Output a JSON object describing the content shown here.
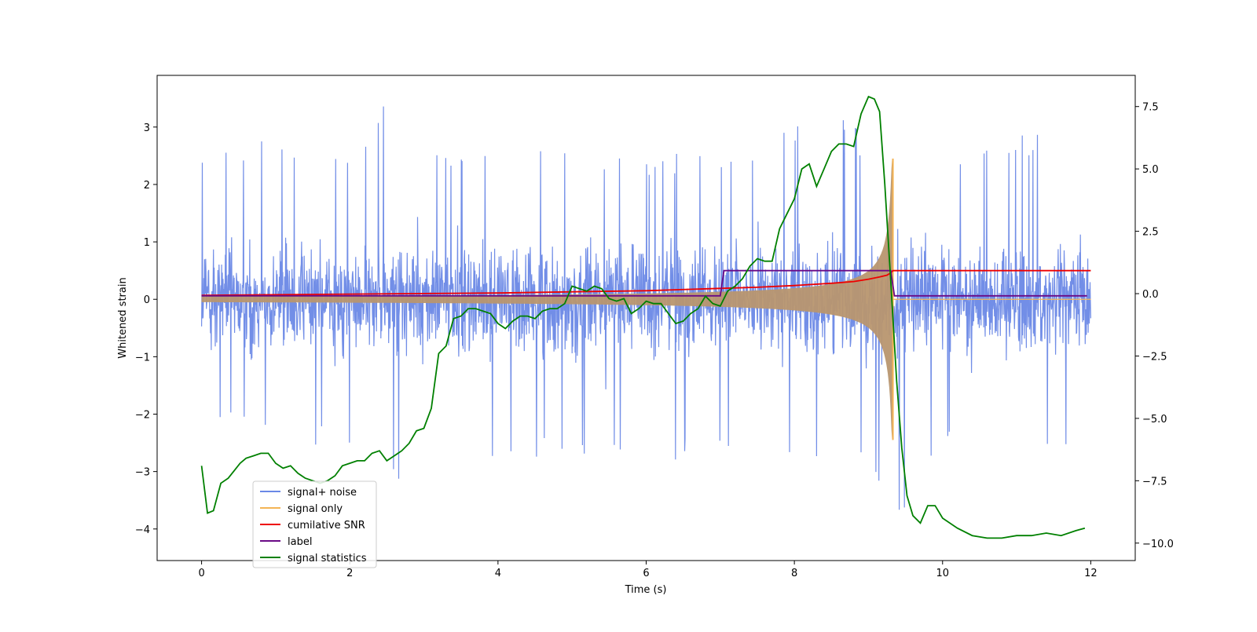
{
  "chart_data": {
    "type": "line",
    "xlabel": "Time (s)",
    "ylabel": "Whitened strain",
    "xlim": [
      -0.6,
      12.6
    ],
    "ylim": [
      -4.55,
      3.9
    ],
    "y2lim": [
      -10.7,
      8.75
    ],
    "xticks": [
      0,
      2,
      4,
      6,
      8,
      10,
      12
    ],
    "xtick_labels": [
      "0",
      "2",
      "4",
      "6",
      "8",
      "10",
      "12"
    ],
    "yticks": [
      -4,
      -3,
      -2,
      -1,
      0,
      1,
      2,
      3
    ],
    "ytick_labels": [
      "−4",
      "−3",
      "−2",
      "−1",
      "0",
      "1",
      "2",
      "3"
    ],
    "y2ticks": [
      -10,
      -7.5,
      -5,
      -2.5,
      0,
      2.5,
      5,
      7.5
    ],
    "y2tick_labels": [
      "−10.0",
      "−7.5",
      "−5.0",
      "−2.5",
      "0.0",
      "2.5",
      "5.0",
      "7.5"
    ],
    "legend_position": "lower-left",
    "colors": {
      "noise": "#6a88e6",
      "signal": "#f4b455",
      "overlap": "#b8966f",
      "snr": "#ee0000",
      "label": "#6a0a86",
      "stat": "#008000"
    },
    "series": [
      {
        "key": "noise",
        "name": "signal+ noise",
        "axis": "left",
        "note_only": "dense noisy trace roughly within [-2.5, 2.5] with spikes",
        "envelope_upper": [
          [
            0,
            2.5
          ],
          [
            0.5,
            2.7
          ],
          [
            1,
            2.8
          ],
          [
            2,
            2.7
          ],
          [
            2.45,
            3.5
          ],
          [
            3,
            2.7
          ],
          [
            4,
            2.6
          ],
          [
            5,
            2.6
          ],
          [
            6,
            2.5
          ],
          [
            7,
            2.6
          ],
          [
            8,
            3.1
          ],
          [
            8.6,
            3.3
          ],
          [
            9.3,
            2.4
          ],
          [
            10,
            2.6
          ],
          [
            11,
            2.9
          ],
          [
            12,
            2.9
          ]
        ],
        "envelope_lower": [
          [
            0,
            -2.0
          ],
          [
            1,
            -2.5
          ],
          [
            2,
            -2.6
          ],
          [
            3,
            -3.5
          ],
          [
            3.35,
            -3.8
          ],
          [
            4,
            -2.9
          ],
          [
            5,
            -2.8
          ],
          [
            6,
            -2.9
          ],
          [
            7,
            -2.7
          ],
          [
            8,
            -2.9
          ],
          [
            9.0,
            -3.1
          ],
          [
            9.35,
            -4.15
          ],
          [
            10,
            -2.6
          ],
          [
            11,
            -2.9
          ],
          [
            12,
            -2.4
          ]
        ]
      },
      {
        "key": "signal",
        "name": "signal only",
        "axis": "left",
        "chirp_end_time": 9.33,
        "chirp_peak": 2.45
      },
      {
        "key": "snr",
        "name": "cumilative SNR",
        "axis": "left",
        "x": [
          0,
          1,
          2,
          3,
          4,
          5,
          6,
          7,
          7.5,
          8,
          8.5,
          8.8,
          9.0,
          9.15,
          9.25,
          9.3,
          9.33,
          12
        ],
        "y": [
          0.07,
          0.08,
          0.09,
          0.1,
          0.11,
          0.13,
          0.15,
          0.19,
          0.21,
          0.24,
          0.28,
          0.31,
          0.35,
          0.39,
          0.42,
          0.46,
          0.5,
          0.5
        ]
      },
      {
        "key": "label",
        "name": "label",
        "axis": "left",
        "x": [
          0,
          7.0,
          7.05,
          9.3,
          9.35,
          11.95
        ],
        "y": [
          0.06,
          0.06,
          0.5,
          0.5,
          0.06,
          0.06
        ]
      },
      {
        "key": "stat",
        "name": "signal statistics",
        "axis": "right",
        "x": [
          0,
          0.08,
          0.16,
          0.26,
          0.36,
          0.44,
          0.52,
          0.6,
          0.7,
          0.8,
          0.9,
          1.0,
          1.1,
          1.2,
          1.3,
          1.4,
          1.5,
          1.6,
          1.7,
          1.8,
          1.9,
          2.0,
          2.1,
          2.2,
          2.3,
          2.4,
          2.5,
          2.6,
          2.7,
          2.8,
          2.9,
          3.0,
          3.1,
          3.2,
          3.3,
          3.4,
          3.5,
          3.6,
          3.7,
          3.8,
          3.9,
          4.0,
          4.1,
          4.2,
          4.3,
          4.4,
          4.5,
          4.6,
          4.7,
          4.8,
          4.9,
          5.0,
          5.1,
          5.2,
          5.3,
          5.4,
          5.5,
          5.6,
          5.7,
          5.8,
          5.9,
          6.0,
          6.1,
          6.2,
          6.3,
          6.4,
          6.5,
          6.6,
          6.7,
          6.8,
          6.9,
          7.0,
          7.1,
          7.2,
          7.3,
          7.4,
          7.5,
          7.6,
          7.7,
          7.8,
          7.9,
          8.0,
          8.1,
          8.2,
          8.3,
          8.4,
          8.5,
          8.6,
          8.7,
          8.8,
          8.9,
          9.0,
          9.08,
          9.15,
          9.22,
          9.3,
          9.38,
          9.45,
          9.52,
          9.6,
          9.7,
          9.8,
          9.9,
          10.0,
          10.2,
          10.4,
          10.6,
          10.8,
          11.0,
          11.2,
          11.4,
          11.6,
          11.8,
          11.92
        ],
        "y": [
          -6.9,
          -8.8,
          -8.7,
          -7.6,
          -7.4,
          -7.1,
          -6.8,
          -6.6,
          -6.5,
          -6.4,
          -6.4,
          -6.8,
          -7.0,
          -6.9,
          -7.2,
          -7.4,
          -7.5,
          -7.6,
          -7.5,
          -7.3,
          -6.9,
          -6.8,
          -6.7,
          -6.7,
          -6.4,
          -6.3,
          -6.7,
          -6.5,
          -6.3,
          -6.0,
          -5.5,
          -5.4,
          -4.6,
          -2.4,
          -2.1,
          -1.0,
          -0.9,
          -0.6,
          -0.6,
          -0.7,
          -0.8,
          -1.2,
          -1.4,
          -1.1,
          -0.9,
          -0.9,
          -1.0,
          -0.7,
          -0.6,
          -0.6,
          -0.4,
          0.3,
          0.2,
          0.1,
          0.3,
          0.2,
          -0.2,
          -0.3,
          -0.2,
          -0.8,
          -0.6,
          -0.3,
          -0.4,
          -0.4,
          -0.8,
          -1.2,
          -1.1,
          -0.8,
          -0.6,
          -0.1,
          -0.4,
          -0.5,
          0.1,
          0.3,
          0.6,
          1.1,
          1.4,
          1.3,
          1.3,
          2.6,
          3.2,
          3.8,
          5.0,
          5.2,
          4.3,
          5.0,
          5.7,
          6.0,
          6.0,
          5.9,
          7.2,
          7.9,
          7.8,
          7.3,
          4.4,
          0.5,
          -3.5,
          -6.2,
          -8.1,
          -8.9,
          -9.2,
          -8.5,
          -8.5,
          -9.0,
          -9.4,
          -9.7,
          -9.8,
          -9.8,
          -9.7,
          -9.7,
          -9.6,
          -9.7,
          -9.5,
          -9.4
        ]
      }
    ]
  }
}
